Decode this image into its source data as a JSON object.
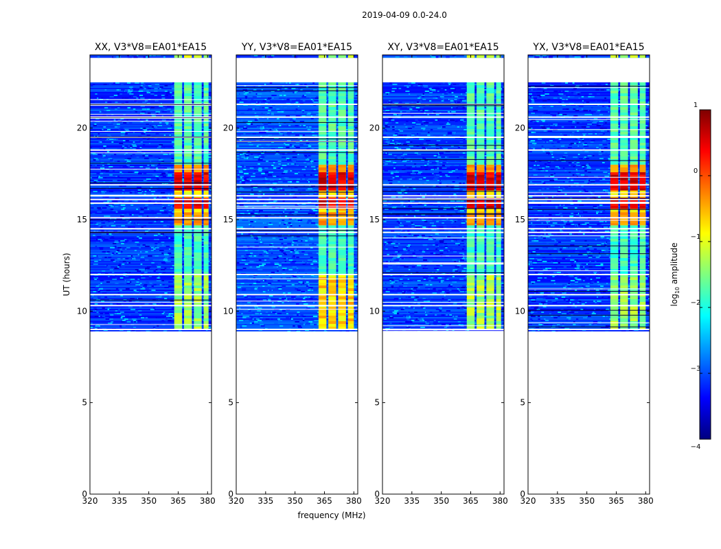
{
  "figure": {
    "suptitle": "2019-04-09 0.0-24.0"
  },
  "chart_data": [
    {
      "type": "heatmap",
      "title": "XX, V3*V8=EA01*EA15",
      "polarization": "XX",
      "xlabel": "",
      "ylabel": "UT (hours)",
      "xlim": [
        320,
        382
      ],
      "ylim": [
        0,
        24
      ],
      "xticks": [
        320,
        335,
        350,
        365,
        380
      ],
      "yticks": [
        0,
        5,
        10,
        15,
        20
      ],
      "data_window_hours": [
        8.9,
        22.5
      ],
      "top_strip_hours": [
        23.85,
        24.0
      ],
      "rfi_band_mhz": [
        363,
        380
      ],
      "rfi_subbands_mhz": [
        [
          363,
          367
        ],
        [
          368,
          372
        ],
        [
          373,
          377
        ],
        [
          378,
          380.5
        ]
      ],
      "strong_rfi_hours": [
        [
          14.7,
          18.0
        ]
      ],
      "moderate_rfi_hours": [
        [
          9.0,
          12.0
        ]
      ],
      "moderate_level": -1.4,
      "background_level": -3.1,
      "flag_lines_hours": [
        9.0,
        10.3,
        10.9,
        12.0,
        14.3,
        14.5,
        15.1,
        15.9,
        16.1,
        16.3,
        16.9,
        18.8,
        19.5,
        20.6,
        21.3
      ]
    },
    {
      "type": "heatmap",
      "title": "YY, V3*V8=EA01*EA15",
      "polarization": "YY",
      "xlabel": "frequency (MHz)",
      "ylabel": "",
      "xlim": [
        320,
        382
      ],
      "ylim": [
        0,
        24
      ],
      "xticks": [
        320,
        335,
        350,
        365,
        380
      ],
      "yticks": [
        0,
        5,
        10,
        15,
        20
      ],
      "data_window_hours": [
        8.9,
        22.5
      ],
      "top_strip_hours": [
        23.85,
        24.0
      ],
      "rfi_band_mhz": [
        362,
        379
      ],
      "rfi_subbands_mhz": [
        [
          362,
          366
        ],
        [
          367,
          371
        ],
        [
          372,
          376
        ],
        [
          377,
          380
        ]
      ],
      "strong_rfi_hours": [
        [
          14.7,
          18.0
        ]
      ],
      "moderate_rfi_hours": [
        [
          9.0,
          12.0
        ]
      ],
      "moderate_level": -0.7,
      "background_level": -3.0,
      "flag_lines_hours": [
        9.0,
        10.3,
        10.9,
        12.0,
        14.3,
        14.5,
        15.1,
        15.9,
        16.1,
        16.3,
        16.9,
        18.8,
        19.5,
        20.6,
        21.3
      ]
    },
    {
      "type": "heatmap",
      "title": "XY, V3*V8=EA01*EA15",
      "polarization": "XY",
      "xlabel": "",
      "ylabel": "",
      "xlim": [
        320,
        382
      ],
      "ylim": [
        0,
        24
      ],
      "xticks": [
        320,
        335,
        350,
        365,
        380
      ],
      "yticks": [
        0,
        5,
        10,
        15,
        20
      ],
      "data_window_hours": [
        8.9,
        22.5
      ],
      "top_strip_hours": [
        23.85,
        24.0
      ],
      "rfi_band_mhz": [
        363,
        380
      ],
      "rfi_subbands_mhz": [
        [
          363,
          367
        ],
        [
          368,
          372
        ],
        [
          373,
          377
        ],
        [
          378,
          380.5
        ]
      ],
      "strong_rfi_hours": [
        [
          14.7,
          18.0
        ]
      ],
      "moderate_rfi_hours": [
        [
          9.0,
          12.0
        ]
      ],
      "moderate_level": -1.3,
      "background_level": -3.1,
      "flag_lines_hours": [
        9.0,
        10.3,
        10.9,
        12.0,
        14.3,
        14.5,
        15.1,
        15.9,
        16.1,
        16.3,
        16.9,
        18.8,
        19.5,
        20.6,
        21.3
      ]
    },
    {
      "type": "heatmap",
      "title": "YX, V3*V8=EA01*EA15",
      "polarization": "YX",
      "xlabel": "",
      "ylabel": "",
      "xlim": [
        320,
        382
      ],
      "ylim": [
        0,
        24
      ],
      "xticks": [
        320,
        335,
        350,
        365,
        380
      ],
      "yticks": [
        0,
        5,
        10,
        15,
        20
      ],
      "data_window_hours": [
        8.9,
        22.5
      ],
      "top_strip_hours": [
        23.85,
        24.0
      ],
      "rfi_band_mhz": [
        362,
        379
      ],
      "rfi_subbands_mhz": [
        [
          362,
          366
        ],
        [
          367,
          371
        ],
        [
          372,
          376
        ],
        [
          377,
          380
        ]
      ],
      "strong_rfi_hours": [
        [
          14.7,
          18.0
        ]
      ],
      "moderate_rfi_hours": [
        [
          9.0,
          12.0
        ]
      ],
      "moderate_level": -1.4,
      "background_level": -3.1,
      "flag_lines_hours": [
        9.0,
        10.3,
        10.9,
        12.0,
        14.3,
        14.5,
        15.1,
        15.9,
        16.1,
        16.3,
        16.9,
        18.8,
        19.5,
        20.6,
        21.3
      ]
    }
  ],
  "colorbar": {
    "label": "log",
    "label_sub": "10",
    "label_rest": " amplitude",
    "range": [
      -4,
      1
    ],
    "ticks": [
      1,
      0,
      -1,
      -2,
      -3,
      -4
    ],
    "tick_labels": [
      "1",
      "0",
      "−1",
      "−2",
      "−3",
      "−4"
    ],
    "colormap": "jet",
    "colors": [
      "#00007f",
      "#0000ff",
      "#007fff",
      "#00ffff",
      "#7fff7f",
      "#ffff00",
      "#ff7f00",
      "#ff0000",
      "#7f0000"
    ]
  }
}
